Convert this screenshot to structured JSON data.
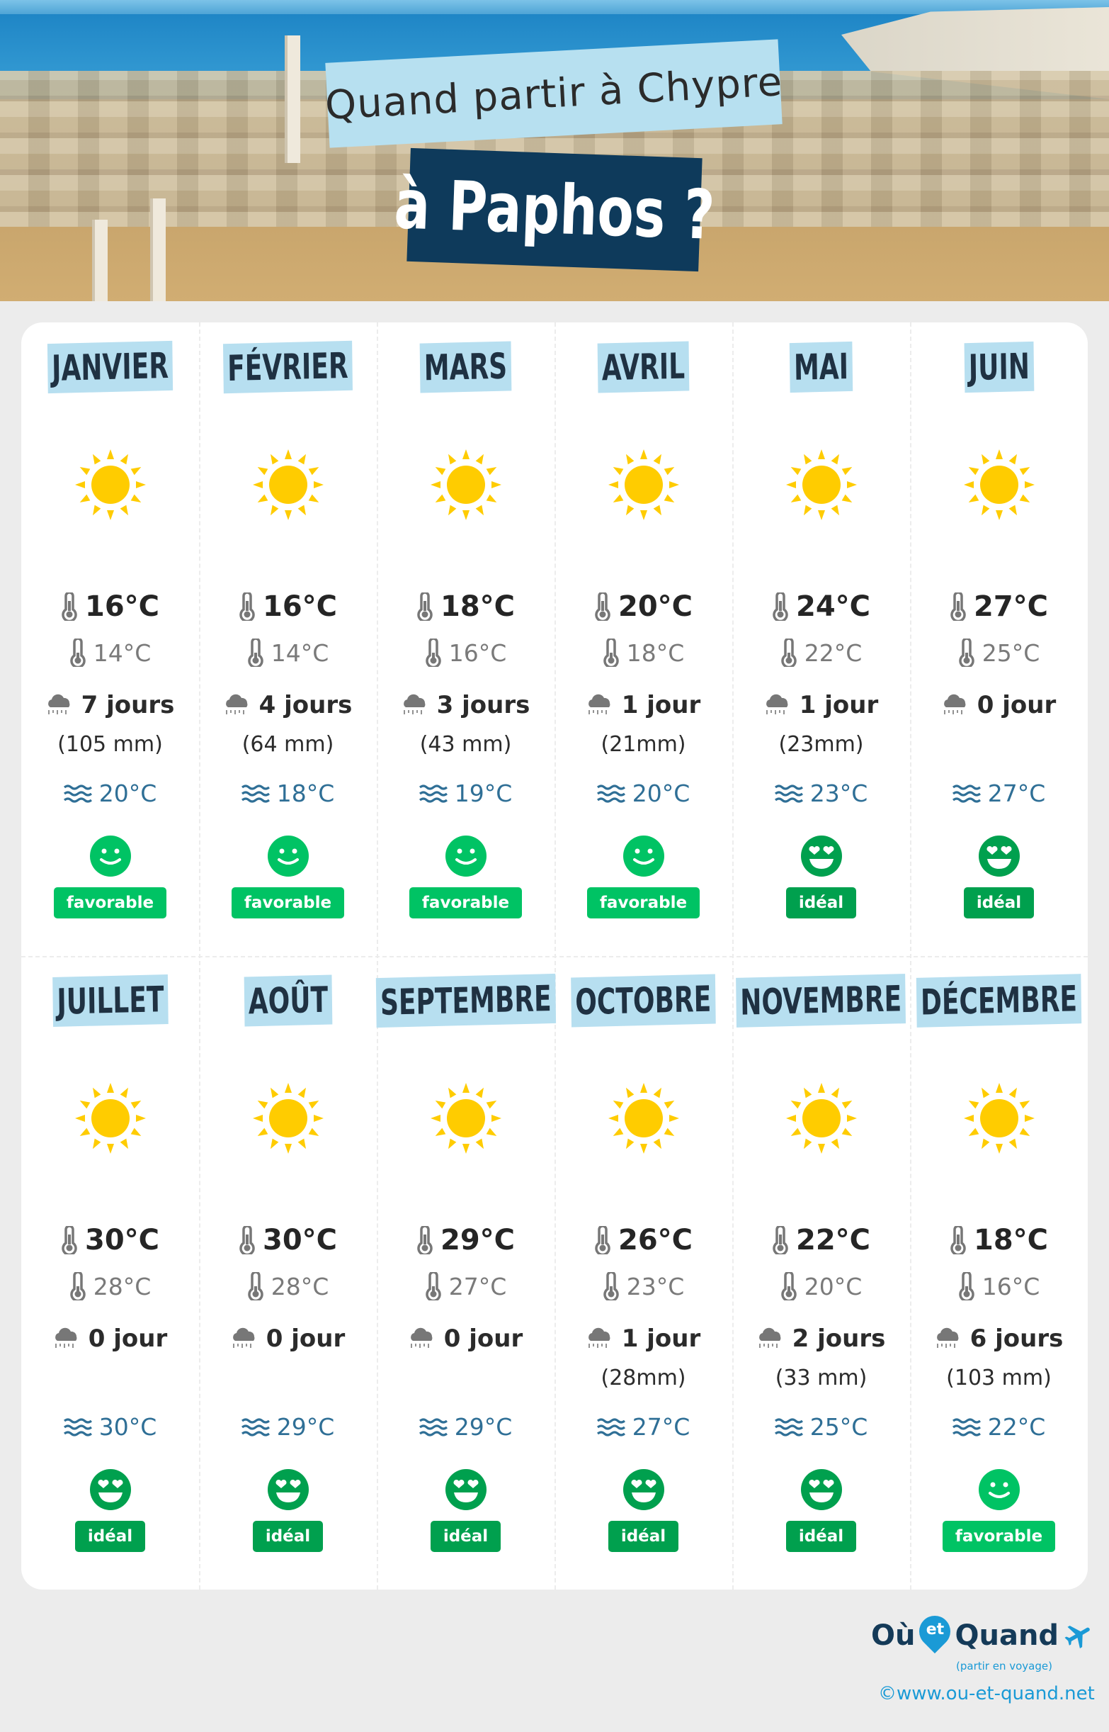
{
  "header": {
    "title_line1": "Quand partir à Chypre",
    "title_line2": "à Paphos ?"
  },
  "colors": {
    "label_bg": "#b7dff0",
    "title_dark": "#0e3a5b",
    "favorable": "#00c364",
    "ideal": "#00a04e",
    "sea_text": "#2f6f96",
    "sun": "#ffcc00"
  },
  "months": [
    {
      "name": "JANVIER",
      "icon": "sun-icon",
      "max": "16°C",
      "min": "14°C",
      "rain_days": "7 jours",
      "rain_mm": "(105 mm)",
      "sea": "20°C",
      "rating": "favorable"
    },
    {
      "name": "FÉVRIER",
      "icon": "sun-icon",
      "max": "16°C",
      "min": "14°C",
      "rain_days": "4 jours",
      "rain_mm": "(64 mm)",
      "sea": "18°C",
      "rating": "favorable"
    },
    {
      "name": "MARS",
      "icon": "sun-icon",
      "max": "18°C",
      "min": "16°C",
      "rain_days": "3 jours",
      "rain_mm": "(43 mm)",
      "sea": "19°C",
      "rating": "favorable"
    },
    {
      "name": "AVRIL",
      "icon": "sun-icon",
      "max": "20°C",
      "min": "18°C",
      "rain_days": "1 jour",
      "rain_mm": "(21mm)",
      "sea": "20°C",
      "rating": "favorable"
    },
    {
      "name": "MAI",
      "icon": "sun-icon",
      "max": "24°C",
      "min": "22°C",
      "rain_days": "1 jour",
      "rain_mm": "(23mm)",
      "sea": "23°C",
      "rating": "idéal"
    },
    {
      "name": "JUIN",
      "icon": "sun-icon",
      "max": "27°C",
      "min": "25°C",
      "rain_days": "0 jour",
      "rain_mm": "",
      "sea": "27°C",
      "rating": "idéal"
    },
    {
      "name": "JUILLET",
      "icon": "sun-icon",
      "max": "30°C",
      "min": "28°C",
      "rain_days": "0 jour",
      "rain_mm": "",
      "sea": "30°C",
      "rating": "idéal"
    },
    {
      "name": "AOÛT",
      "icon": "sun-icon",
      "max": "30°C",
      "min": "28°C",
      "rain_days": "0 jour",
      "rain_mm": "",
      "sea": "29°C",
      "rating": "idéal"
    },
    {
      "name": "SEPTEMBRE",
      "icon": "sun-icon",
      "max": "29°C",
      "min": "27°C",
      "rain_days": "0 jour",
      "rain_mm": "",
      "sea": "29°C",
      "rating": "idéal"
    },
    {
      "name": "OCTOBRE",
      "icon": "sun-icon",
      "max": "26°C",
      "min": "23°C",
      "rain_days": "1 jour",
      "rain_mm": "(28mm)",
      "sea": "27°C",
      "rating": "idéal"
    },
    {
      "name": "NOVEMBRE",
      "icon": "sun-icon",
      "max": "22°C",
      "min": "20°C",
      "rain_days": "2 jours",
      "rain_mm": "(33 mm)",
      "sea": "25°C",
      "rating": "idéal"
    },
    {
      "name": "DÉCEMBRE",
      "icon": "sun-icon",
      "max": "18°C",
      "min": "16°C",
      "rain_days": "6 jours",
      "rain_mm": "(103 mm)",
      "sea": "22°C",
      "rating": "favorable"
    }
  ],
  "footer": {
    "logo_ou": "Où",
    "logo_et": "et",
    "logo_quand": "Quand",
    "logo_tagline": "(partir en voyage)",
    "copyright": "©www.ou-et-quand.net"
  }
}
